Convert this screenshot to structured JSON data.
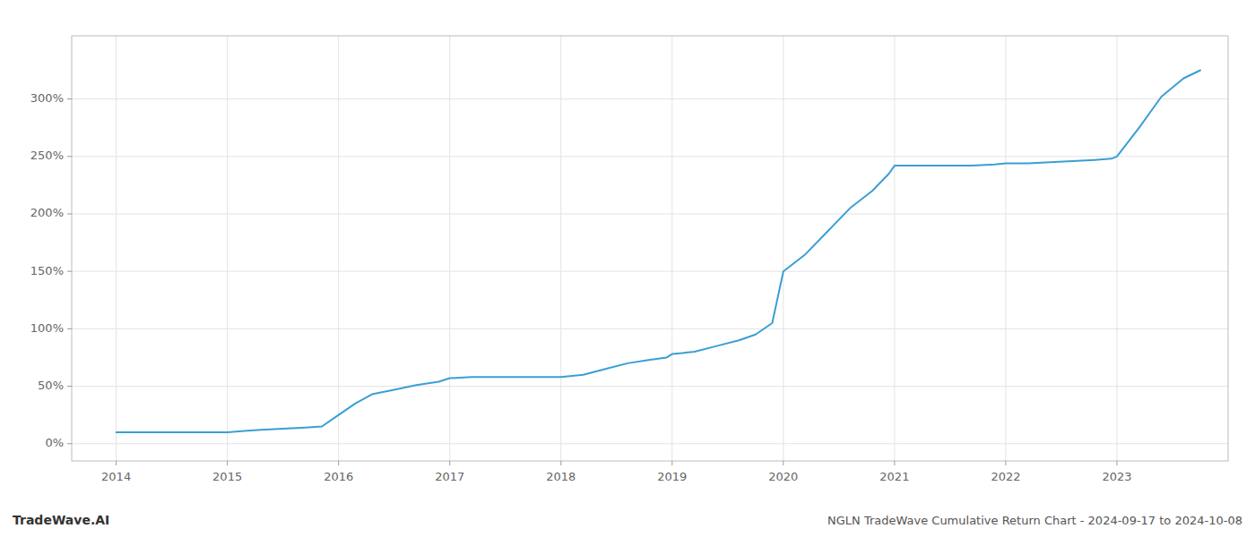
{
  "chart_data": {
    "type": "line",
    "title": "NGLN TradeWave Cumulative Return Chart - 2024-09-17 to 2024-10-08",
    "annotations": [
      "TradeWave.AI"
    ],
    "color": "#3a9fd4",
    "grid": true,
    "x": [
      2014.0,
      2014.15,
      2014.3,
      2014.5,
      2014.7,
      2014.9,
      2015.0,
      2015.15,
      2015.3,
      2015.5,
      2015.7,
      2015.85,
      2016.0,
      2016.15,
      2016.3,
      2016.5,
      2016.7,
      2016.9,
      2017.0,
      2017.2,
      2017.4,
      2017.6,
      2017.8,
      2017.95,
      2018.0,
      2018.2,
      2018.4,
      2018.6,
      2018.8,
      2018.95,
      2019.0,
      2019.2,
      2019.4,
      2019.6,
      2019.75,
      2019.9,
      2020.0,
      2020.2,
      2020.4,
      2020.6,
      2020.8,
      2020.95,
      2021.0,
      2021.1,
      2021.3,
      2021.5,
      2021.7,
      2021.9,
      2022.0,
      2022.2,
      2022.4,
      2022.6,
      2022.8,
      2022.95,
      2023.0,
      2023.2,
      2023.4,
      2023.6,
      2023.75
    ],
    "values": [
      10,
      10,
      10,
      10,
      10,
      10,
      10,
      11,
      12,
      13,
      14,
      15,
      25,
      35,
      43,
      47,
      51,
      54,
      57,
      58,
      58,
      58,
      58,
      58,
      58,
      60,
      65,
      70,
      73,
      75,
      78,
      80,
      85,
      90,
      95,
      105,
      150,
      165,
      185,
      205,
      220,
      235,
      242,
      242,
      242,
      242,
      242,
      243,
      244,
      244,
      245,
      246,
      247,
      248,
      250,
      275,
      302,
      318,
      325
    ],
    "xlim": [
      2013.6,
      2024.0
    ],
    "ylim": [
      -15,
      355
    ],
    "xticks": [
      2014,
      2015,
      2016,
      2017,
      2018,
      2019,
      2020,
      2021,
      2022,
      2023
    ],
    "yticks": [
      {
        "value": 0,
        "label": "0%"
      },
      {
        "value": 50,
        "label": "50%"
      },
      {
        "value": 100,
        "label": "100%"
      },
      {
        "value": 150,
        "label": "150%"
      },
      {
        "value": 200,
        "label": "200%"
      },
      {
        "value": 250,
        "label": "250%"
      },
      {
        "value": 300,
        "label": "300%"
      }
    ]
  }
}
